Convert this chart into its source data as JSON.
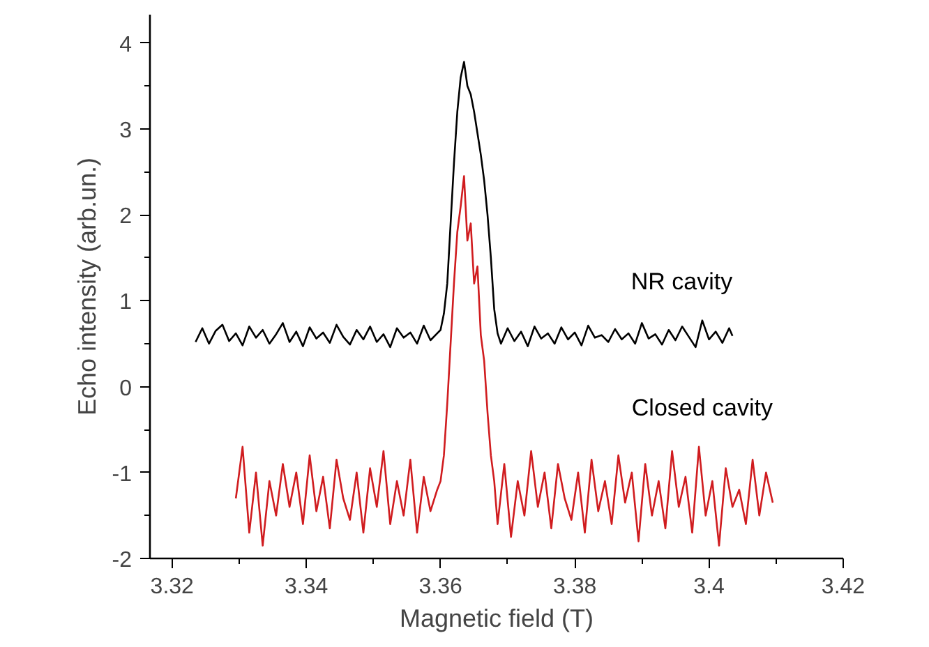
{
  "chart_data": {
    "type": "line",
    "xlabel": "Magnetic field (T)",
    "ylabel": "Echo intensity (arb.un.)",
    "xlim": [
      3.3167,
      3.42
    ],
    "ylim": [
      -2,
      4.33
    ],
    "xticks": [
      3.32,
      {
        "value": 3.33,
        "label": null
      },
      3.34,
      {
        "value": 3.35,
        "label": null
      },
      3.36,
      {
        "value": 3.37,
        "label": null
      },
      3.38,
      {
        "value": 3.39,
        "label": null
      },
      3.4,
      {
        "value": 3.41,
        "label": null
      },
      3.42
    ],
    "yticks": [
      -2,
      {
        "value": -1.5,
        "label": null
      },
      -1,
      {
        "value": -0.5,
        "label": null
      },
      0,
      {
        "value": 0.5,
        "label": null
      },
      1,
      {
        "value": 1.5,
        "label": null
      },
      2,
      {
        "value": 2.5,
        "label": null
      },
      3,
      {
        "value": 3.5,
        "label": null
      },
      4
    ],
    "grid": false,
    "legend": false,
    "line_style": "solid",
    "marker": "none",
    "series": [
      {
        "name": "NR cavity",
        "color": "#000000",
        "x": [
          3.3235,
          3.3245,
          3.3255,
          3.3265,
          3.3275,
          3.3285,
          3.3295,
          3.3305,
          3.3315,
          3.3325,
          3.3335,
          3.3345,
          3.3355,
          3.3365,
          3.3375,
          3.3385,
          3.3395,
          3.3405,
          3.3415,
          3.3425,
          3.3435,
          3.3445,
          3.3455,
          3.3465,
          3.3475,
          3.3485,
          3.3495,
          3.3505,
          3.3515,
          3.3525,
          3.3535,
          3.3545,
          3.3555,
          3.3565,
          3.3575,
          3.3585,
          3.3595,
          3.36,
          3.3605,
          3.361,
          3.3615,
          3.362,
          3.3625,
          3.363,
          3.3635,
          3.364,
          3.3645,
          3.365,
          3.3655,
          3.366,
          3.3665,
          3.367,
          3.3675,
          3.368,
          3.3685,
          3.369,
          3.37,
          3.371,
          3.372,
          3.373,
          3.374,
          3.375,
          3.376,
          3.377,
          3.378,
          3.379,
          3.38,
          3.381,
          3.382,
          3.383,
          3.384,
          3.385,
          3.386,
          3.387,
          3.388,
          3.389,
          3.39,
          3.391,
          3.392,
          3.393,
          3.394,
          3.395,
          3.396,
          3.397,
          3.398,
          3.399,
          3.4,
          3.401,
          3.402,
          3.403,
          3.4035
        ],
        "values": [
          0.52,
          0.68,
          0.5,
          0.65,
          0.72,
          0.53,
          0.62,
          0.48,
          0.7,
          0.57,
          0.66,
          0.5,
          0.61,
          0.74,
          0.52,
          0.64,
          0.47,
          0.69,
          0.56,
          0.63,
          0.51,
          0.72,
          0.58,
          0.49,
          0.66,
          0.55,
          0.7,
          0.52,
          0.61,
          0.46,
          0.68,
          0.57,
          0.63,
          0.5,
          0.71,
          0.54,
          0.62,
          0.66,
          0.85,
          1.2,
          1.9,
          2.6,
          3.2,
          3.6,
          3.78,
          3.5,
          3.4,
          3.2,
          2.95,
          2.7,
          2.4,
          2.0,
          1.5,
          0.9,
          0.62,
          0.5,
          0.68,
          0.53,
          0.64,
          0.47,
          0.7,
          0.56,
          0.62,
          0.5,
          0.69,
          0.55,
          0.63,
          0.48,
          0.71,
          0.57,
          0.6,
          0.52,
          0.67,
          0.55,
          0.62,
          0.5,
          0.74,
          0.56,
          0.61,
          0.49,
          0.66,
          0.54,
          0.7,
          0.58,
          0.46,
          0.77,
          0.55,
          0.64,
          0.51,
          0.68,
          0.59
        ]
      },
      {
        "name": "Closed cavity",
        "color": "#d01c1f",
        "x": [
          3.3295,
          3.3305,
          3.3315,
          3.3325,
          3.3335,
          3.3345,
          3.3355,
          3.3365,
          3.3375,
          3.3385,
          3.3395,
          3.3405,
          3.3415,
          3.3425,
          3.3435,
          3.3445,
          3.3455,
          3.3465,
          3.3475,
          3.3485,
          3.3495,
          3.3505,
          3.3515,
          3.3525,
          3.3535,
          3.3545,
          3.3555,
          3.3565,
          3.3575,
          3.3585,
          3.3595,
          3.36,
          3.3605,
          3.361,
          3.3615,
          3.362,
          3.3625,
          3.363,
          3.3635,
          3.364,
          3.3645,
          3.365,
          3.3655,
          3.366,
          3.3665,
          3.367,
          3.3675,
          3.368,
          3.3685,
          3.3695,
          3.3705,
          3.3715,
          3.3725,
          3.3735,
          3.3745,
          3.3755,
          3.3765,
          3.3775,
          3.3785,
          3.3795,
          3.3805,
          3.3815,
          3.3825,
          3.3835,
          3.3845,
          3.3855,
          3.3865,
          3.3875,
          3.3885,
          3.3895,
          3.3905,
          3.3915,
          3.3925,
          3.3935,
          3.3945,
          3.3955,
          3.3965,
          3.3975,
          3.3985,
          3.3995,
          3.4005,
          3.4015,
          3.4025,
          3.4035,
          3.4045,
          3.4055,
          3.4065,
          3.4075,
          3.4085,
          3.4095
        ],
        "values": [
          -1.3,
          -0.7,
          -1.7,
          -1.0,
          -1.85,
          -1.1,
          -1.5,
          -0.9,
          -1.4,
          -1.0,
          -1.6,
          -0.8,
          -1.45,
          -1.05,
          -1.65,
          -0.85,
          -1.3,
          -1.55,
          -1.0,
          -1.7,
          -0.95,
          -1.4,
          -0.75,
          -1.6,
          -1.1,
          -1.5,
          -0.85,
          -1.7,
          -1.05,
          -1.45,
          -1.2,
          -1.1,
          -0.8,
          -0.2,
          0.5,
          1.2,
          1.8,
          2.1,
          2.45,
          1.7,
          1.9,
          1.2,
          1.4,
          0.6,
          0.3,
          -0.3,
          -0.8,
          -1.1,
          -1.6,
          -0.9,
          -1.75,
          -1.1,
          -1.5,
          -0.75,
          -1.4,
          -1.0,
          -1.65,
          -0.9,
          -1.3,
          -1.55,
          -1.0,
          -1.7,
          -0.85,
          -1.45,
          -1.1,
          -1.6,
          -0.8,
          -1.35,
          -1.0,
          -1.8,
          -0.9,
          -1.5,
          -1.1,
          -1.65,
          -0.75,
          -1.4,
          -1.05,
          -1.7,
          -0.7,
          -1.5,
          -1.1,
          -1.85,
          -0.95,
          -1.4,
          -1.2,
          -1.6,
          -0.85,
          -1.5,
          -1.0,
          -1.35
        ]
      }
    ]
  }
}
